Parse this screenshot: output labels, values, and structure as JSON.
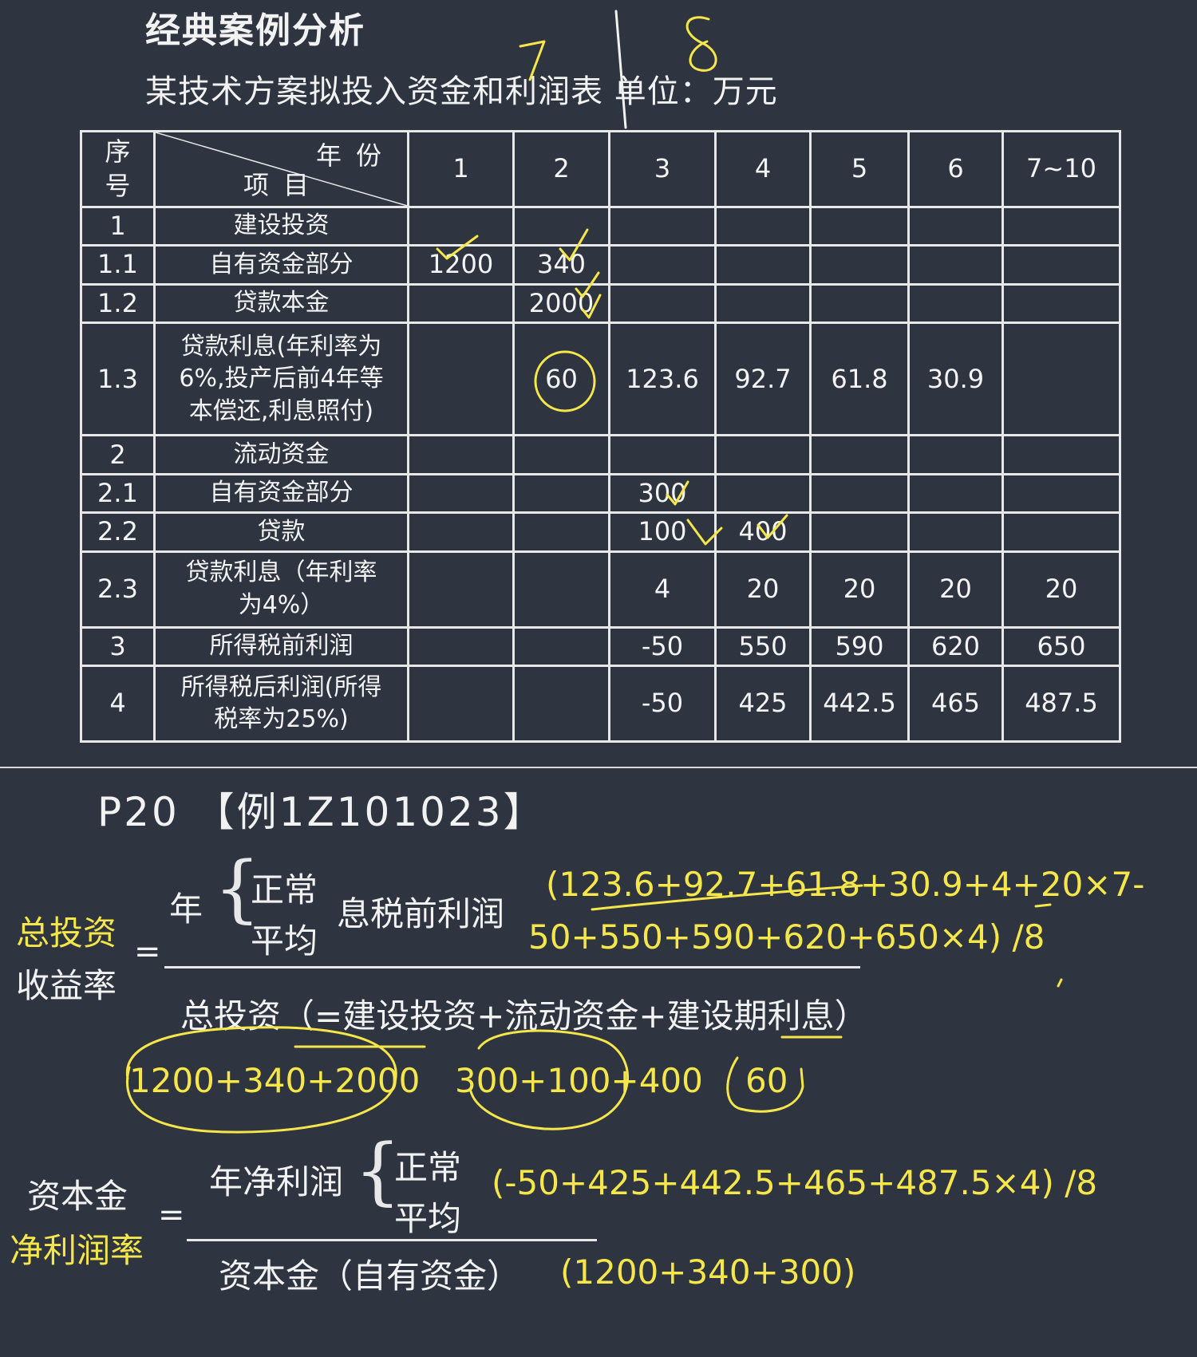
{
  "header": {
    "title": "经典案例分析",
    "subtitle": "某技术方案拟投入资金和利润表 单位：万元"
  },
  "table": {
    "seq_head": "序号",
    "seq_head_top": "序",
    "seq_head_bottom": "号",
    "year_label": "年份",
    "item_label": "项目",
    "year_columns": [
      "1",
      "2",
      "3",
      "4",
      "5",
      "6",
      "7~10"
    ],
    "rows": [
      {
        "seq": "1",
        "item": "建设投资",
        "values": [
          "",
          "",
          "",
          "",
          "",
          "",
          ""
        ]
      },
      {
        "seq": "1.1",
        "item": "自有资金部分",
        "values": [
          "1200",
          "340",
          "",
          "",
          "",
          "",
          ""
        ]
      },
      {
        "seq": "1.2",
        "item": "贷款本金",
        "values": [
          "",
          "2000",
          "",
          "",
          "",
          "",
          ""
        ]
      },
      {
        "seq": "1.3",
        "item": "贷款利息(年利率为6%,投产后前4年等本偿还,利息照付)",
        "values": [
          "",
          "60",
          "123.6",
          "92.7",
          "61.8",
          "30.9",
          ""
        ]
      },
      {
        "seq": "2",
        "item": "流动资金",
        "values": [
          "",
          "",
          "",
          "",
          "",
          "",
          ""
        ]
      },
      {
        "seq": "2.1",
        "item": "自有资金部分",
        "values": [
          "",
          "",
          "300",
          "",
          "",
          "",
          ""
        ]
      },
      {
        "seq": "2.2",
        "item": "贷款",
        "values": [
          "",
          "",
          "100",
          "400",
          "",
          "",
          ""
        ]
      },
      {
        "seq": "2.3",
        "item": "贷款利息（年利率为4%）",
        "values": [
          "",
          "",
          "4",
          "20",
          "20",
          "20",
          "20"
        ]
      },
      {
        "seq": "3",
        "item": "所得税前利润",
        "values": [
          "",
          "",
          "-50",
          "550",
          "590",
          "620",
          "650"
        ]
      },
      {
        "seq": "4",
        "item": "所得税后利润(所得税率为25%)",
        "values": [
          "",
          "",
          "-50",
          "425",
          "442.5",
          "465",
          "487.5"
        ]
      }
    ]
  },
  "example_ref": "P20 【例1Z101023】",
  "formula1": {
    "label_line1": "总投资",
    "label_line2": "收益率",
    "equals": "=",
    "year": "年",
    "opt_normal": "正常",
    "opt_average": "平均",
    "numerator": "息税前利润",
    "calc_line1": "(123.6+92.7+61.8+30.9+4+20×7-",
    "calc_line2": "50+550+590+620+650×4) /8",
    "denominator": "总投资（=建设投资+流动资金+建设期利息）",
    "sum_construction": "1200+340+2000",
    "sum_working": "300+100+400",
    "sum_interest": "60"
  },
  "formula2": {
    "label_line1": "资本金",
    "label_line2": "净利润率",
    "equals": "=",
    "numerator": "年净利润",
    "opt_normal": "正常",
    "opt_average": "平均",
    "calc": "(-50+425+442.5+465+487.5×4) /8",
    "denominator": "资本金（自有资金）",
    "denominator_calc": "(1200+340+300)"
  },
  "handwriting": {
    "top_marks": "7 | 8"
  },
  "colors": {
    "background": "#2f3441",
    "text": "#f2f2f2",
    "highlight": "#f5e64a",
    "grid": "#e8e8e8"
  }
}
